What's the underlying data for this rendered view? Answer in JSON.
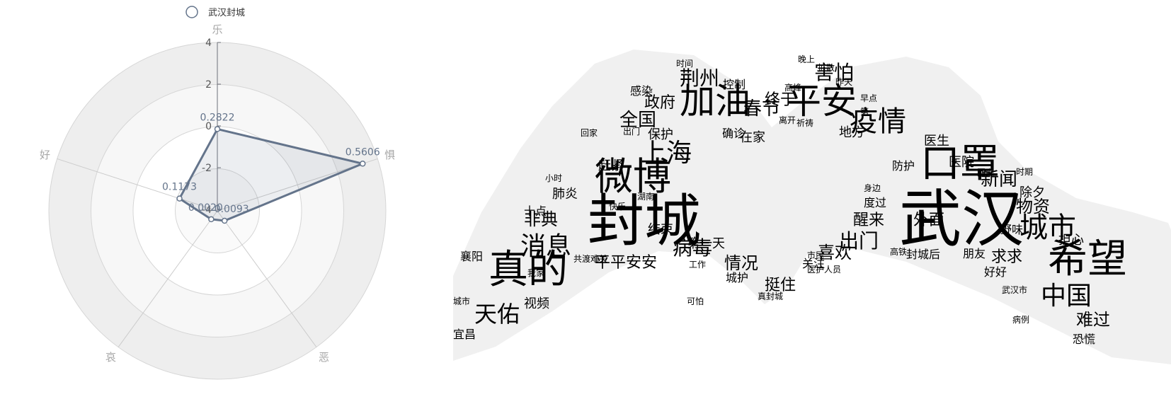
{
  "chart_data": [
    {
      "type": "radar",
      "legend": {
        "items": [
          {
            "name": "武汉封城",
            "color": "#64748b"
          }
        ],
        "position": "top-center"
      },
      "indicators": [
        "乐",
        "惧",
        "恶",
        "哀",
        "好"
      ],
      "radius_axis": {
        "ticks": [
          "4",
          "2",
          "0",
          "-2",
          "-4"
        ],
        "min": -4,
        "max": 4
      },
      "split_area_colors": [
        "#eeeeee",
        "#f7f7f7",
        "#ffffff",
        "#fafafa"
      ],
      "series": [
        {
          "name": "武汉封城",
          "values": [
            0.2822,
            0.5606,
            0.0093,
            0.002,
            0.1173
          ],
          "labels": [
            "0.2822",
            "0.5606",
            "0.0093",
            "0.0020",
            "0.1173"
          ],
          "color": "#64748b"
        }
      ]
    },
    {
      "type": "wordcloud",
      "shape": "two hands forming a heart",
      "background_color": "#f0f0f0",
      "words": [
        {
          "text": "武汉",
          "size": 88
        },
        {
          "text": "封城",
          "size": 80
        },
        {
          "text": "希望",
          "size": 56
        },
        {
          "text": "口罩",
          "size": 56
        },
        {
          "text": "真的",
          "size": 56
        },
        {
          "text": "微博",
          "size": 54
        },
        {
          "text": "平安",
          "size": 50
        },
        {
          "text": "加油",
          "size": 50
        },
        {
          "text": "城市",
          "size": 40
        },
        {
          "text": "疫情",
          "size": 40
        },
        {
          "text": "中国",
          "size": 36
        },
        {
          "text": "上海",
          "size": 36
        },
        {
          "text": "消息",
          "size": 36
        },
        {
          "text": "天佑",
          "size": 32
        },
        {
          "text": "害怕",
          "size": 28
        },
        {
          "text": "荆州",
          "size": 28
        },
        {
          "text": "病毒",
          "size": 28
        },
        {
          "text": "出门",
          "size": 28
        },
        {
          "text": "新闻",
          "size": 26
        },
        {
          "text": "全国",
          "size": 26
        },
        {
          "text": "春节",
          "size": 26
        },
        {
          "text": "物资",
          "size": 24
        },
        {
          "text": "难过",
          "size": 24
        },
        {
          "text": "喜欢",
          "size": 24
        },
        {
          "text": "情况",
          "size": 24
        },
        {
          "text": "非典",
          "size": 24
        },
        {
          "text": "终于",
          "size": 22
        },
        {
          "text": "挺住",
          "size": 22
        },
        {
          "text": "政府",
          "size": 22
        },
        {
          "text": "外面",
          "size": 22
        },
        {
          "text": "醒来",
          "size": 22
        },
        {
          "text": "求求",
          "size": 22
        },
        {
          "text": "平平安安",
          "size": 22
        },
        {
          "text": "医生",
          "size": 18
        },
        {
          "text": "结束",
          "size": 18
        },
        {
          "text": "在家",
          "size": 18
        },
        {
          "text": "肺炎",
          "size": 18
        },
        {
          "text": "视频",
          "size": 18
        },
        {
          "text": "第一天",
          "size": 18
        },
        {
          "text": "地方",
          "size": 18
        },
        {
          "text": "医院",
          "size": 18
        },
        {
          "text": "担心",
          "size": 18
        },
        {
          "text": "除夕",
          "size": 18
        },
        {
          "text": "赶紧",
          "size": 18
        },
        {
          "text": "保护",
          "size": 18
        },
        {
          "text": "野味",
          "size": 16
        },
        {
          "text": "宜昌",
          "size": 16
        },
        {
          "text": "襄阳",
          "size": 16
        },
        {
          "text": "防护",
          "size": 16
        },
        {
          "text": "度过",
          "size": 16
        },
        {
          "text": "关注",
          "size": 16
        },
        {
          "text": "控制",
          "size": 16
        },
        {
          "text": "十点",
          "size": 16
        },
        {
          "text": "确诊",
          "size": 16
        },
        {
          "text": "好好",
          "size": 16
        },
        {
          "text": "感染",
          "size": 16
        },
        {
          "text": "恐慌",
          "size": 16
        },
        {
          "text": "封城后",
          "size": 16
        },
        {
          "text": "朋友",
          "size": 16
        },
        {
          "text": "城护",
          "size": 16
        },
        {
          "text": "时间",
          "size": 12
        },
        {
          "text": "晚上",
          "size": 12
        },
        {
          "text": "昨天",
          "size": 12
        },
        {
          "text": "祈祷",
          "size": 12
        },
        {
          "text": "离开",
          "size": 12
        },
        {
          "text": "高峰",
          "size": 12
        },
        {
          "text": "小时",
          "size": 12
        },
        {
          "text": "快乐",
          "size": 12
        },
        {
          "text": "湖南",
          "size": 12
        },
        {
          "text": "高铁",
          "size": 12
        },
        {
          "text": "市民",
          "size": 12
        },
        {
          "text": "回家",
          "size": 12
        },
        {
          "text": "早点",
          "size": 12
        },
        {
          "text": "第一",
          "size": 12
        },
        {
          "text": "身边",
          "size": 12
        },
        {
          "text": "时期",
          "size": 12
        },
        {
          "text": "病例",
          "size": 12
        },
        {
          "text": "武汉市",
          "size": 12
        },
        {
          "text": "我家",
          "size": 12
        },
        {
          "text": "工作",
          "size": 12
        },
        {
          "text": "可怕",
          "size": 12
        },
        {
          "text": "真封城",
          "size": 12
        },
        {
          "text": "城市",
          "size": 12
        },
        {
          "text": "回来",
          "size": 12
        },
        {
          "text": "扩散",
          "size": 12
        },
        {
          "text": "医护人员",
          "size": 12
        },
        {
          "text": "共渡难关",
          "size": 12
        },
        {
          "text": "出门",
          "size": 12
        }
      ]
    }
  ]
}
